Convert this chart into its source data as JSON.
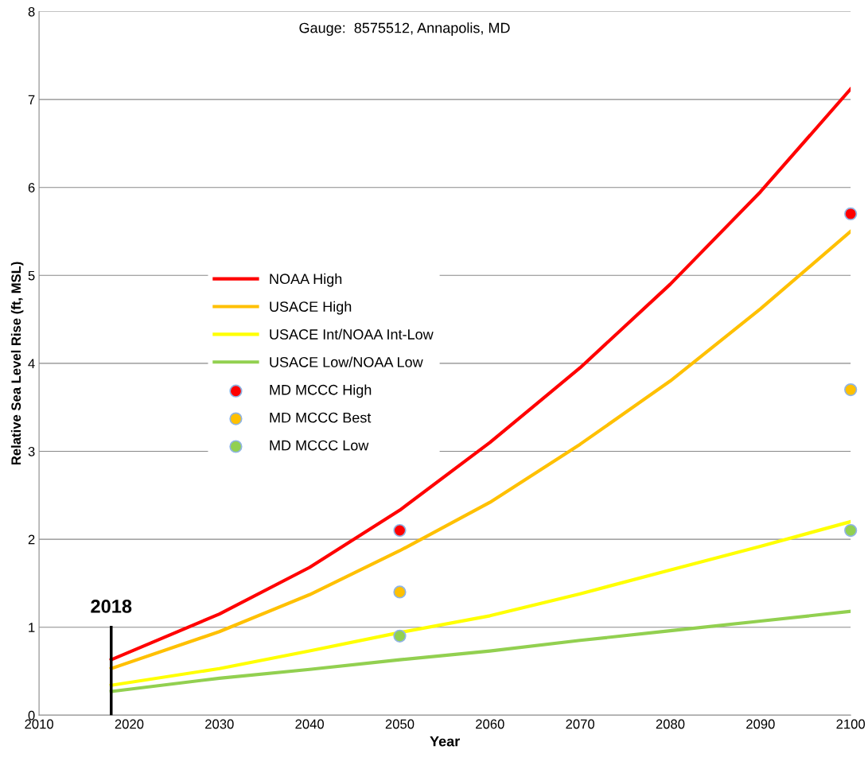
{
  "chart_data": {
    "type": "line",
    "xlabel": "Year",
    "ylabel": "Relative Sea Level Rise (ft, MSL)",
    "annotations": [
      "Gauge:  8575512, Annapolis, MD"
    ],
    "xlim": [
      2010,
      2100
    ],
    "xticks": [
      2010,
      2020,
      2030,
      2040,
      2050,
      2060,
      2070,
      2080,
      2090,
      2100
    ],
    "ylim": [
      0,
      8
    ],
    "yticks": [
      0,
      1,
      2,
      3,
      4,
      5,
      6,
      7,
      8
    ],
    "grid": "y",
    "legend": "center left",
    "ref_lines": [
      {
        "axis": "x",
        "value": 2018,
        "label": "2018",
        "color": "#000000"
      }
    ],
    "series": [
      {
        "name": "NOAA High",
        "color": "#ff0000",
        "x": [
          2018,
          2030,
          2040,
          2050,
          2060,
          2070,
          2080,
          2090,
          2100
        ],
        "values": [
          0.63,
          1.15,
          1.68,
          2.33,
          3.1,
          3.95,
          4.9,
          5.95,
          7.12
        ]
      },
      {
        "name": "USACE High",
        "color": "#ffc000",
        "x": [
          2018,
          2030,
          2040,
          2050,
          2060,
          2070,
          2080,
          2090,
          2100
        ],
        "values": [
          0.53,
          0.95,
          1.37,
          1.87,
          2.42,
          3.08,
          3.8,
          4.62,
          5.5
        ]
      },
      {
        "name": "USACE Int/NOAA Int-Low",
        "color": "#ffff00",
        "x": [
          2018,
          2030,
          2040,
          2050,
          2060,
          2070,
          2080,
          2090,
          2100
        ],
        "values": [
          0.34,
          0.53,
          0.73,
          0.94,
          1.13,
          1.38,
          1.65,
          1.92,
          2.2
        ]
      },
      {
        "name": "USACE Low/NOAA Low",
        "color": "#92d050",
        "x": [
          2018,
          2030,
          2040,
          2050,
          2060,
          2070,
          2080,
          2090,
          2100
        ],
        "values": [
          0.27,
          0.42,
          0.52,
          0.63,
          0.73,
          0.85,
          0.96,
          1.07,
          1.18
        ]
      },
      {
        "name": "MD MCCC High",
        "type": "scatter",
        "marker": "circle",
        "color": "#ff0000",
        "x": [
          2050,
          2100
        ],
        "values": [
          2.1,
          5.7
        ]
      },
      {
        "name": "MD MCCC Best",
        "type": "scatter",
        "marker": "circle",
        "color": "#ffc000",
        "x": [
          2050,
          2100
        ],
        "values": [
          1.4,
          3.7
        ]
      },
      {
        "name": "MD MCCC Low",
        "type": "scatter",
        "marker": "circle",
        "color": "#92d050",
        "x": [
          2050,
          2100
        ],
        "values": [
          0.9,
          2.1
        ]
      }
    ]
  }
}
